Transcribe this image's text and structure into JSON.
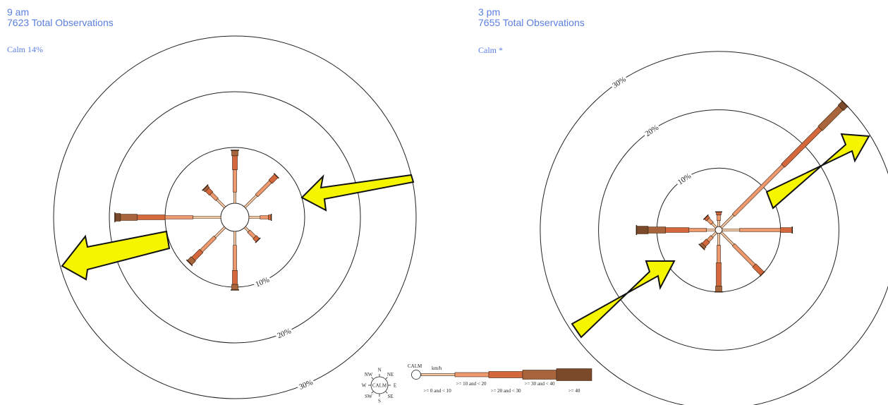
{
  "panels": [
    {
      "time_label": "9 am",
      "observations_label": "7623 Total Observations",
      "calm_label": "Calm 14%"
    },
    {
      "time_label": "3 pm",
      "observations_label": "7655 Total Observations",
      "calm_label": "Calm *"
    }
  ],
  "chart_data": [
    {
      "type": "wind-rose",
      "title": "9 am",
      "subtitle": "7623 Total Observations",
      "calm_percent": 14,
      "ring_labels": [
        "10%",
        "20%",
        "30%"
      ],
      "rings_percent": [
        10,
        20,
        30
      ],
      "speed_bins": [
        ">= 0 and < 10",
        ">= 10 and < 20",
        ">= 20 and < 30",
        ">= 30 and < 40",
        ">= 40"
      ],
      "directions": [
        {
          "dir": "N",
          "values": [
            2.0,
            4.0,
            2.5,
            1.0,
            0
          ]
        },
        {
          "dir": "NE",
          "values": [
            3.0,
            3.5,
            1.5,
            0,
            0
          ]
        },
        {
          "dir": "E",
          "values": [
            2.0,
            1.5,
            0.5,
            0,
            0
          ]
        },
        {
          "dir": "SE",
          "values": [
            1.0,
            1.5,
            0.8,
            0,
            0
          ]
        },
        {
          "dir": "S",
          "values": [
            2.5,
            4.5,
            2.5,
            1.0,
            0
          ]
        },
        {
          "dir": "SW",
          "values": [
            2.5,
            3.5,
            2.0,
            1.0,
            0
          ]
        },
        {
          "dir": "W",
          "values": [
            5.0,
            5.0,
            5.0,
            3.0,
            1.0
          ]
        },
        {
          "dir": "NW",
          "values": [
            2.0,
            1.5,
            1.0,
            0.5,
            0
          ]
        }
      ]
    },
    {
      "type": "wind-rose",
      "title": "3 pm",
      "subtitle": "7655 Total Observations",
      "calm_percent": null,
      "ring_labels": [
        "10%",
        "20%",
        "30%"
      ],
      "rings_percent": [
        10,
        20,
        30
      ],
      "speed_bins": [
        ">= 0 and < 10",
        ">= 10 and < 20",
        ">= 20 and < 30",
        ">= 30 and < 40",
        ">= 40"
      ],
      "directions": [
        {
          "dir": "N",
          "values": [
            1.0,
            1.0,
            0.5,
            0,
            0
          ]
        },
        {
          "dir": "NE",
          "values": [
            3.0,
            12.0,
            9.0,
            5.0,
            1.0
          ]
        },
        {
          "dir": "E",
          "values": [
            3.0,
            7.0,
            2.0,
            0,
            0
          ]
        },
        {
          "dir": "SE",
          "values": [
            3.0,
            5.0,
            2.0,
            0,
            0
          ]
        },
        {
          "dir": "S",
          "values": [
            2.0,
            3.0,
            4.0,
            1.0,
            0
          ]
        },
        {
          "dir": "SW",
          "values": [
            1.0,
            1.0,
            1.0,
            0.5,
            0
          ]
        },
        {
          "dir": "W",
          "values": [
            1.5,
            3.0,
            4.0,
            3.0,
            2.0
          ]
        },
        {
          "dir": "NW",
          "values": [
            1.0,
            1.0,
            0.5,
            0,
            0
          ]
        }
      ]
    }
  ],
  "legend": {
    "calm_label": "CALM",
    "units_label": "km/h",
    "bins": [
      ">= 0 and < 10",
      ">= 10 and < 20",
      ">= 20 and < 30",
      ">= 30 and < 40",
      ">= 40"
    ],
    "compass_labels": [
      "N",
      "NE",
      "E",
      "SE",
      "S",
      "SW",
      "W",
      "NW"
    ],
    "compass_center": "CALM"
  },
  "colors": {
    "bins": [
      "#f6c8a4",
      "#ef9a6e",
      "#d4683c",
      "#a8643a",
      "#7a4a2a"
    ],
    "arrow_fill": "#f5f500",
    "header": "#5b7fe0"
  }
}
